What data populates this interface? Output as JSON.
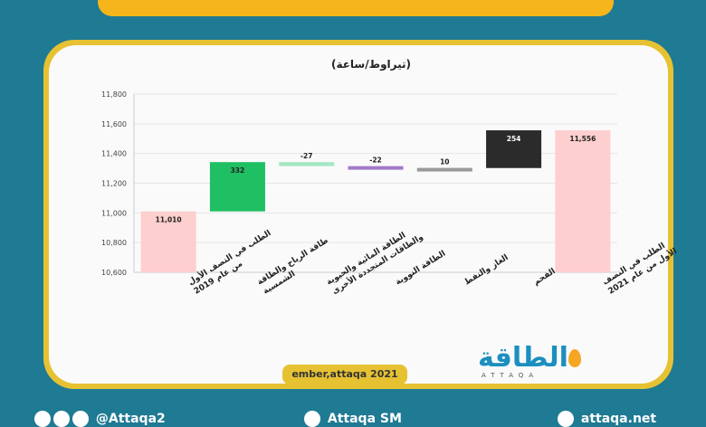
{
  "chart_data": {
    "type": "waterfall",
    "title": "(تيراوط/ساعة)",
    "ylim": [
      10600,
      11800
    ],
    "yticks": [
      10600,
      10800,
      11000,
      11200,
      11400,
      11600,
      11800
    ],
    "ytick_labels": [
      "10,600",
      "10,800",
      "11,000",
      "11,200",
      "11,400",
      "11,600",
      "11,800"
    ],
    "categories": [
      [
        "الطلب في النصف الأول",
        "من عام 2019"
      ],
      [
        "طاقة الرياح والطاقة",
        "الشمسية"
      ],
      [
        "الطاقة المائية والحيوية",
        "والطاقات المتجددة الأخرى"
      ],
      [
        "الطاقة النووية"
      ],
      [
        "الغاز والنفط"
      ],
      [
        "الفحم"
      ],
      [
        "الطلب في النصف",
        "الأول من عام 2021"
      ]
    ],
    "bars": [
      {
        "base": 10600,
        "top": 11010,
        "label": "11,010",
        "color": "#fdcfcf"
      },
      {
        "base": 11010,
        "top": 11342,
        "label": "332",
        "color": "#1fbf63"
      },
      {
        "base": 11315,
        "top": 11342,
        "label": "-27",
        "color": "#a5e8c3"
      },
      {
        "base": 11293,
        "top": 11315,
        "label": "-22",
        "color": "#a27ac9"
      },
      {
        "base": 11293,
        "top": 11303,
        "label": "10",
        "color": "#999999"
      },
      {
        "base": 11302,
        "top": 11556,
        "label": "254",
        "color": "#2b2b2b"
      },
      {
        "base": 10600,
        "top": 11556,
        "label": "11,556",
        "color": "#fdcfcf"
      }
    ]
  },
  "source": "ember,attaqa 2021",
  "logo": {
    "text": "الطاقة",
    "sub": "ATTAQA"
  },
  "footer": {
    "social_handle": "@Attaqa2",
    "youtube_handle": "Attaqa SM",
    "website": "attaqa.net"
  },
  "colors": {
    "background": "#1f7a93",
    "accent": "#e6c233",
    "banner": "#f5b51b"
  }
}
